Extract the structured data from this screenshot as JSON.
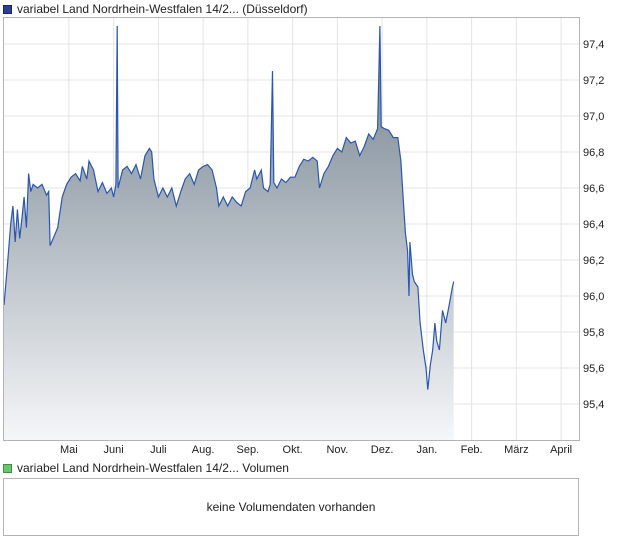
{
  "price_legend": {
    "label": "variabel Land Nordrhein-Westfalen 14/2... (Düsseldorf)",
    "swatch_color": "#2d3c96"
  },
  "volume_legend": {
    "label": "variabel Land Nordrhein-Westfalen 14/2... Volumen",
    "swatch_color": "#6cc56c"
  },
  "volume_panel": {
    "message": "keine Volumendaten vorhanden"
  },
  "colors": {
    "line": "#2b56b0",
    "fill_top": "#6f7e8b",
    "fill_bottom": "#f5f6f8",
    "grid": "#e4e4e4",
    "frame": "#b4b4b4"
  },
  "chart_data": {
    "type": "area",
    "title": "",
    "xlabel": "",
    "ylabel": "",
    "ylim": [
      95.2,
      97.55
    ],
    "y_ticks": [
      "95,4",
      "95,6",
      "95,8",
      "96,0",
      "96,2",
      "96,4",
      "96,6",
      "96,8",
      "97,0",
      "97,2",
      "97,4"
    ],
    "x_ticks": [
      "Mai",
      "Juni",
      "Juli",
      "Aug.",
      "Sep.",
      "Okt.",
      "Nov.",
      "Dez.",
      "Jan.",
      "Feb.",
      "März",
      "April"
    ],
    "x_range": [
      -1.45,
      11.4
    ],
    "grid": true,
    "series": [
      {
        "values": [
          [
            -1.45,
            95.95
          ],
          [
            -1.38,
            96.15
          ],
          [
            -1.3,
            96.4
          ],
          [
            -1.25,
            96.5
          ],
          [
            -1.2,
            96.3
          ],
          [
            -1.15,
            96.48
          ],
          [
            -1.1,
            96.32
          ],
          [
            -1.05,
            96.43
          ],
          [
            -1.0,
            96.55
          ],
          [
            -0.95,
            96.38
          ],
          [
            -0.9,
            96.68
          ],
          [
            -0.85,
            96.58
          ],
          [
            -0.8,
            96.62
          ],
          [
            -0.7,
            96.6
          ],
          [
            -0.6,
            96.62
          ],
          [
            -0.5,
            96.56
          ],
          [
            -0.45,
            96.58
          ],
          [
            -0.42,
            96.28
          ],
          [
            -0.35,
            96.32
          ],
          [
            -0.25,
            96.38
          ],
          [
            -0.15,
            96.55
          ],
          [
            -0.05,
            96.62
          ],
          [
            0.05,
            96.66
          ],
          [
            0.15,
            96.68
          ],
          [
            0.25,
            96.64
          ],
          [
            0.3,
            96.72
          ],
          [
            0.4,
            96.65
          ],
          [
            0.45,
            96.75
          ],
          [
            0.55,
            96.7
          ],
          [
            0.65,
            96.58
          ],
          [
            0.75,
            96.63
          ],
          [
            0.85,
            96.57
          ],
          [
            0.95,
            96.6
          ],
          [
            1.0,
            96.55
          ],
          [
            1.05,
            96.62
          ],
          [
            1.08,
            97.5
          ],
          [
            1.1,
            96.6
          ],
          [
            1.2,
            96.7
          ],
          [
            1.3,
            96.72
          ],
          [
            1.4,
            96.68
          ],
          [
            1.5,
            96.73
          ],
          [
            1.6,
            96.65
          ],
          [
            1.7,
            96.78
          ],
          [
            1.8,
            96.82
          ],
          [
            1.85,
            96.8
          ],
          [
            1.9,
            96.65
          ],
          [
            2.0,
            96.55
          ],
          [
            2.1,
            96.6
          ],
          [
            2.2,
            96.55
          ],
          [
            2.3,
            96.6
          ],
          [
            2.4,
            96.5
          ],
          [
            2.5,
            96.58
          ],
          [
            2.6,
            96.65
          ],
          [
            2.7,
            96.68
          ],
          [
            2.8,
            96.62
          ],
          [
            2.9,
            96.7
          ],
          [
            3.0,
            96.72
          ],
          [
            3.1,
            96.73
          ],
          [
            3.2,
            96.7
          ],
          [
            3.3,
            96.6
          ],
          [
            3.35,
            96.5
          ],
          [
            3.45,
            96.55
          ],
          [
            3.55,
            96.5
          ],
          [
            3.65,
            96.55
          ],
          [
            3.75,
            96.52
          ],
          [
            3.85,
            96.5
          ],
          [
            3.95,
            96.58
          ],
          [
            4.05,
            96.6
          ],
          [
            4.15,
            96.7
          ],
          [
            4.2,
            96.65
          ],
          [
            4.3,
            96.7
          ],
          [
            4.35,
            96.6
          ],
          [
            4.45,
            96.58
          ],
          [
            4.5,
            96.62
          ],
          [
            4.55,
            97.25
          ],
          [
            4.58,
            96.63
          ],
          [
            4.65,
            96.6
          ],
          [
            4.75,
            96.65
          ],
          [
            4.85,
            96.63
          ],
          [
            4.95,
            96.66
          ],
          [
            5.05,
            96.66
          ],
          [
            5.15,
            96.72
          ],
          [
            5.25,
            96.76
          ],
          [
            5.35,
            96.75
          ],
          [
            5.45,
            96.77
          ],
          [
            5.55,
            96.75
          ],
          [
            5.6,
            96.6
          ],
          [
            5.7,
            96.68
          ],
          [
            5.8,
            96.72
          ],
          [
            5.9,
            96.78
          ],
          [
            6.0,
            96.82
          ],
          [
            6.1,
            96.8
          ],
          [
            6.2,
            96.88
          ],
          [
            6.3,
            96.85
          ],
          [
            6.4,
            96.86
          ],
          [
            6.5,
            96.78
          ],
          [
            6.6,
            96.83
          ],
          [
            6.7,
            96.9
          ],
          [
            6.8,
            96.87
          ],
          [
            6.9,
            96.93
          ],
          [
            6.95,
            97.5
          ],
          [
            6.98,
            96.94
          ],
          [
            7.05,
            96.93
          ],
          [
            7.15,
            96.92
          ],
          [
            7.25,
            96.88
          ],
          [
            7.35,
            96.88
          ],
          [
            7.42,
            96.75
          ],
          [
            7.47,
            96.55
          ],
          [
            7.52,
            96.35
          ],
          [
            7.57,
            96.25
          ],
          [
            7.6,
            96.0
          ],
          [
            7.62,
            96.3
          ],
          [
            7.68,
            96.12
          ],
          [
            7.72,
            96.08
          ],
          [
            7.8,
            96.05
          ],
          [
            7.85,
            95.85
          ],
          [
            7.92,
            95.7
          ],
          [
            7.98,
            95.6
          ],
          [
            8.02,
            95.48
          ],
          [
            8.08,
            95.62
          ],
          [
            8.13,
            95.7
          ],
          [
            8.18,
            95.85
          ],
          [
            8.22,
            95.75
          ],
          [
            8.28,
            95.7
          ],
          [
            8.35,
            95.92
          ],
          [
            8.42,
            95.85
          ],
          [
            8.5,
            95.95
          ],
          [
            8.57,
            96.05
          ],
          [
            8.6,
            96.08
          ]
        ]
      }
    ]
  }
}
